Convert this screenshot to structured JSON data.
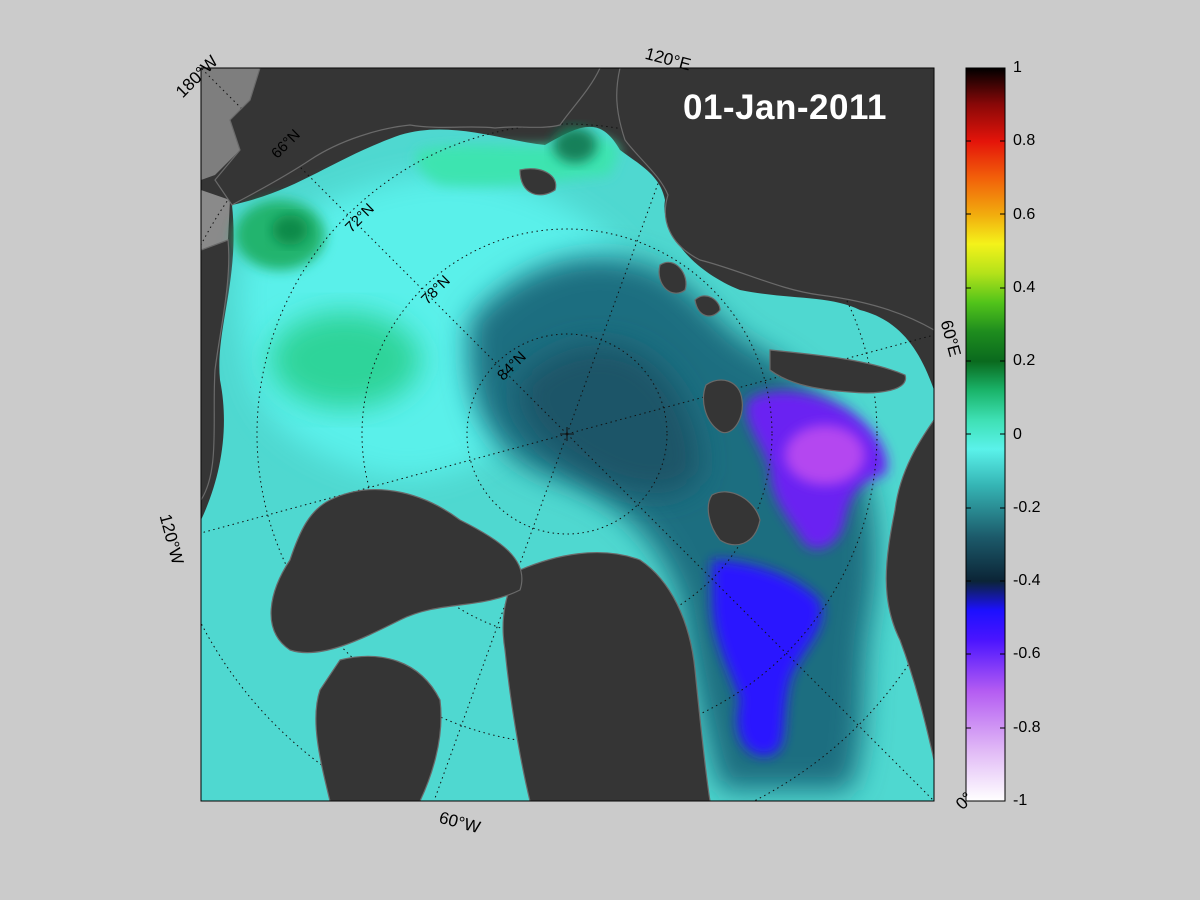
{
  "map": {
    "date": "01-Jan-2011",
    "longitude_labels": {
      "lon_180w": "180°W",
      "lon_120e": "120°E",
      "lon_60e": "60°E",
      "lon_0": "0°",
      "lon_60w": "60°W",
      "lon_120w": "120°W"
    },
    "latitude_labels": {
      "lat_66": "66°N",
      "lat_72": "72°N",
      "lat_78": "78°N",
      "lat_84": "84°N"
    }
  },
  "colorbar": {
    "ticks": [
      "1",
      "0.8",
      "0.6",
      "0.4",
      "0.2",
      "0",
      "-0.2",
      "-0.4",
      "-0.6",
      "-0.8",
      "-1"
    ],
    "range": [
      -1,
      1
    ],
    "colors": [
      "#ffffff",
      "#d6a6f2",
      "#9b34f0",
      "#1c10ff",
      "#0e3a52",
      "#2a8c8c",
      "#52f2e6",
      "#2ad49a",
      "#0a6a20",
      "#1e8a1e",
      "#7fd61a",
      "#f4f21a",
      "#f29a0e",
      "#f21a0a",
      "#8a0a0a",
      "#000000"
    ]
  }
}
